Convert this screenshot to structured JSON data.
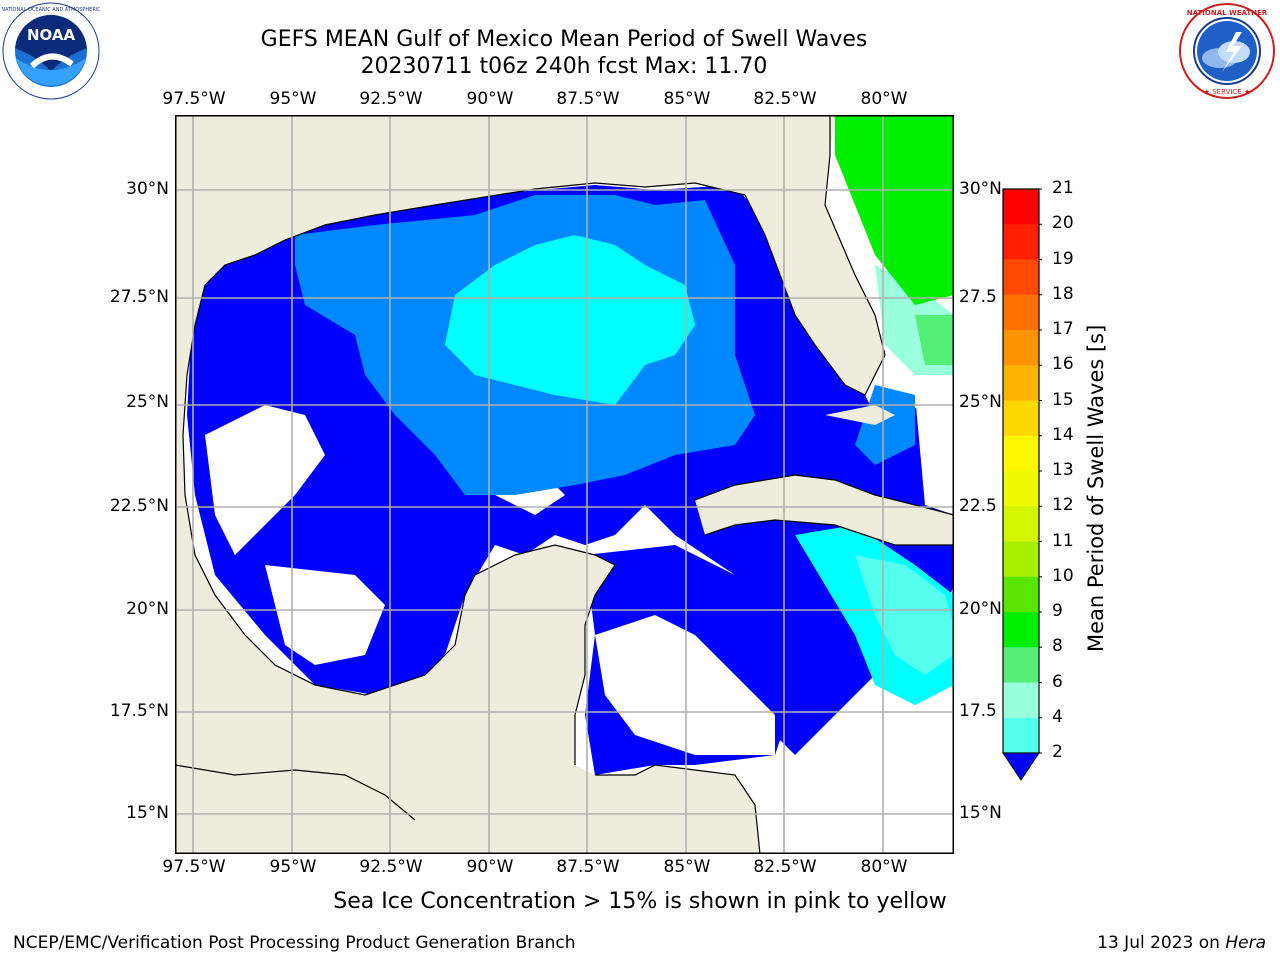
{
  "header": {
    "title_line1": "GEFS MEAN Gulf of Mexico Mean Period of Swell Waves",
    "title_line2": "20230711 t06z 240h fcst   Max: 11.70"
  },
  "logos": {
    "left": "noaa-logo",
    "right": "national-weather-service-logo"
  },
  "map": {
    "lon_labels": [
      "97.5°W",
      "95°W",
      "92.5°W",
      "90°W",
      "87.5°W",
      "85°W",
      "82.5°W",
      "80°W"
    ],
    "lat_labels": [
      "30°N",
      "27.5°N",
      "25°N",
      "22.5°N",
      "20°N",
      "17.5°N",
      "15°N"
    ],
    "right_lat_labels": [
      "30°N",
      "27.5",
      "25°N",
      "22.5",
      "20°N",
      "17.5",
      "15°N"
    ],
    "land_color": "#eeecdc",
    "ocean_base_color": "#0000ff"
  },
  "colorbar": {
    "label": "Mean Period of Swell Waves [s]",
    "ticks": [
      "21",
      "20",
      "19",
      "18",
      "17",
      "16",
      "15",
      "14",
      "13",
      "12",
      "11",
      "10",
      "9",
      "8",
      "6",
      "4",
      "2"
    ],
    "colors": [
      "#ff0000",
      "#ff2000",
      "#ff4a00",
      "#ff7000",
      "#ff9400",
      "#ffb400",
      "#ffd800",
      "#fff700",
      "#eefa00",
      "#d3f500",
      "#a8ee00",
      "#5ae600",
      "#00ee00",
      "#55ee77",
      "#99ffdd",
      "#55ffee",
      "#00ffff",
      "#00dcff",
      "#0088ff"
    ],
    "under_color": "#0000ff"
  },
  "note": "Sea Ice Concentration > 15% is shown in pink to yellow",
  "footer": {
    "left": "NCEP/EMC/Verification Post Processing Product Generation Branch",
    "right_prefix": "13 Jul 2023 on ",
    "right_host": "Hera"
  }
}
